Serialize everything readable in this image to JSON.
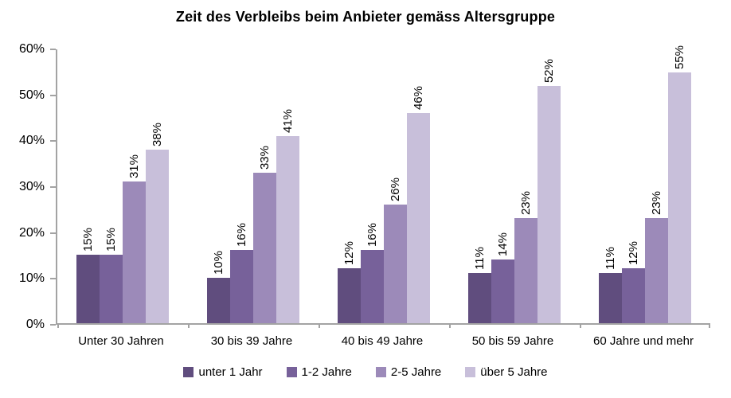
{
  "chart_data": {
    "type": "bar",
    "title": "Zeit des Verbleibs beim Anbieter gemäss Altersgruppe",
    "categories": [
      "Unter 30 Jahren",
      "30 bis 39 Jahre",
      "40 bis 49 Jahre",
      "50 bis 59 Jahre",
      "60 Jahre und mehr"
    ],
    "series": [
      {
        "name": "unter 1 Jahr",
        "color": "#604d7e",
        "values": [
          15,
          10,
          12,
          11,
          11
        ]
      },
      {
        "name": "1-2 Jahre",
        "color": "#77619a",
        "values": [
          15,
          16,
          16,
          14,
          12
        ]
      },
      {
        "name": "2-5 Jahre",
        "color": "#9c8ab9",
        "values": [
          31,
          33,
          26,
          23,
          23
        ]
      },
      {
        "name": "über 5 Jahre",
        "color": "#c8bfda",
        "values": [
          38,
          41,
          46,
          52,
          55
        ]
      }
    ],
    "value_suffix": "%",
    "data_labels": "rotated-vertical",
    "ylim": [
      0,
      60
    ],
    "y_tick_values": [
      0,
      10,
      20,
      30,
      40,
      50,
      60
    ],
    "y_tick_labels": [
      "0%",
      "10%",
      "20%",
      "30%",
      "40%",
      "50%",
      "60%"
    ],
    "grid": false,
    "legend_position": "bottom",
    "axis_color": "#a3a3a3"
  }
}
